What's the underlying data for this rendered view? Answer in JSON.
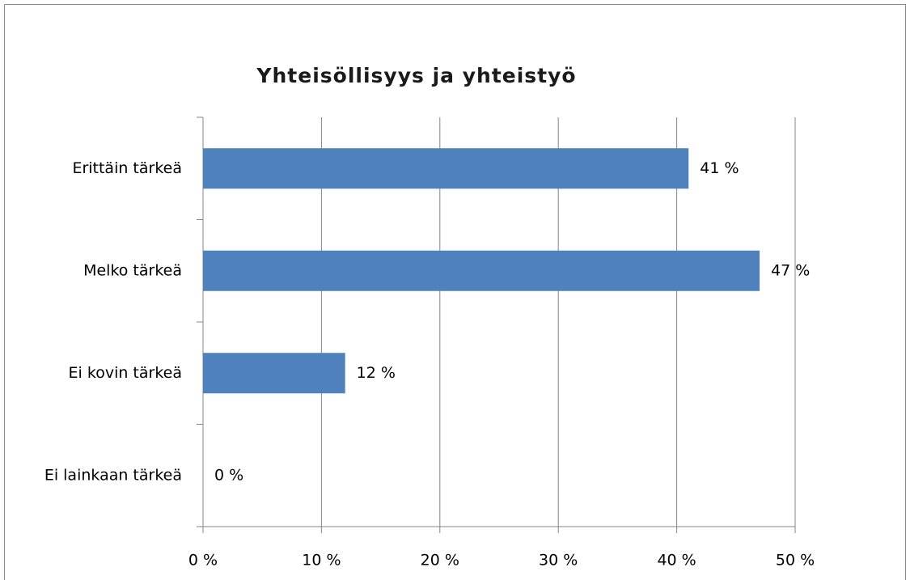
{
  "chart_data": {
    "type": "bar",
    "orientation": "horizontal",
    "title": "Yhteisöllisyys ja yhteistyö",
    "categories": [
      "Erittäin tärkeä",
      "Melko tärkeä",
      "Ei kovin tärkeä",
      "Ei lainkaan tärkeä"
    ],
    "values": [
      41,
      47,
      12,
      0
    ],
    "value_labels": [
      "41 %",
      "47 %",
      "12 %",
      "0 %"
    ],
    "color": "#4f81bd",
    "xlim": [
      0,
      50
    ],
    "xticks": [
      {
        "value": 0,
        "label": "0 %"
      },
      {
        "value": 10,
        "label": "10 %"
      },
      {
        "value": 20,
        "label": "20 %"
      },
      {
        "value": 30,
        "label": "30 %"
      },
      {
        "value": 40,
        "label": "40 %"
      },
      {
        "value": 50,
        "label": "50 %"
      }
    ],
    "grid": true
  }
}
